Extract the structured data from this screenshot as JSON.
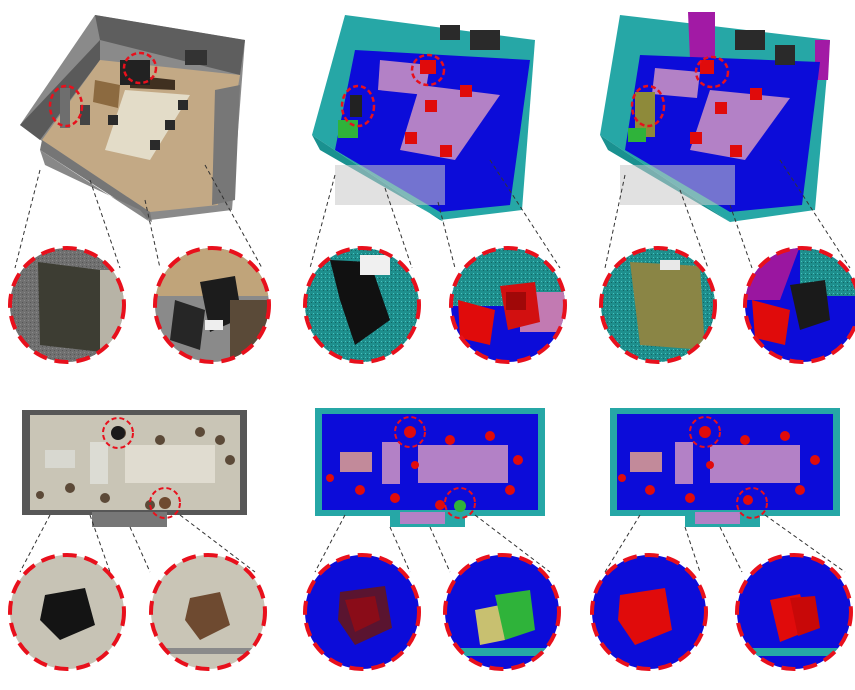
{
  "figure": {
    "columns": [
      "rgb",
      "semantic-a",
      "semantic-b"
    ],
    "rows": [
      "perspective-view",
      "top-view"
    ]
  },
  "colors": {
    "highlight": "#e8101c",
    "leader": "#333333",
    "rgb_wall": "#6d6d6d",
    "rgb_floor": "#b9a17c",
    "sem_wall": "#26a7a6",
    "sem_floor": "#0c0cd9",
    "sem_table": "#b381c6",
    "sem_chair": "#e00b0b",
    "sem_green": "#2fb33a",
    "sem_olive": "#8e8a3a",
    "sem_magenta": "#a21aa5"
  }
}
